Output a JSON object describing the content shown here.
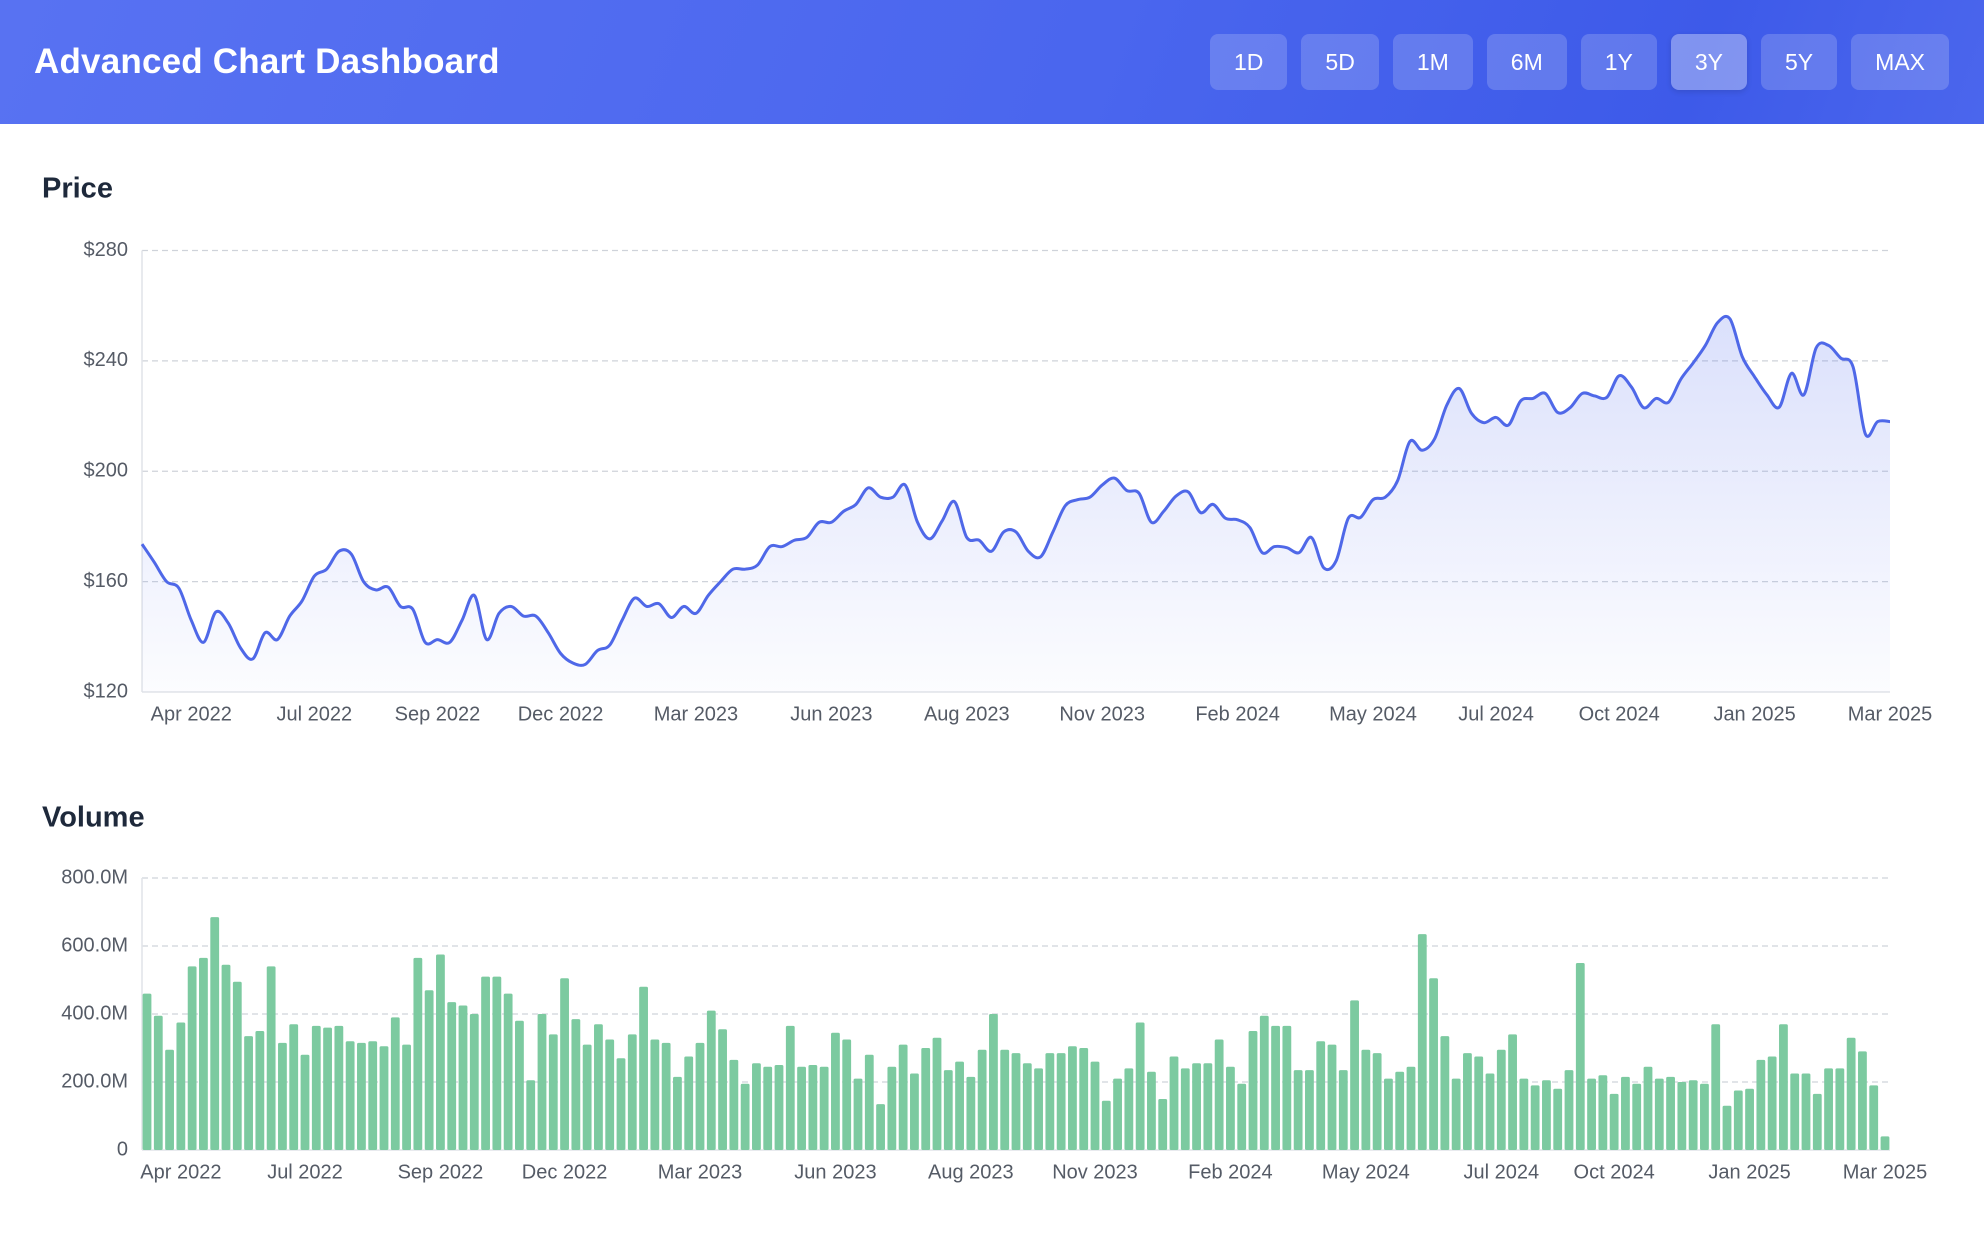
{
  "header": {
    "title": "Advanced Chart Dashboard",
    "buttons": [
      {
        "label": "1D"
      },
      {
        "label": "5D"
      },
      {
        "label": "1M"
      },
      {
        "label": "6M"
      },
      {
        "label": "1Y"
      },
      {
        "label": "3Y",
        "active": true
      },
      {
        "label": "5Y"
      },
      {
        "label": "MAX"
      }
    ]
  },
  "chart_data": [
    {
      "type": "line",
      "title": "Price",
      "color": "#4f68e8",
      "fill": true,
      "grid": true,
      "ylim": [
        120,
        280
      ],
      "yticks": [
        {
          "value": 120,
          "label": "$120"
        },
        {
          "value": 160,
          "label": "$160"
        },
        {
          "value": 200,
          "label": "$200"
        },
        {
          "value": 240,
          "label": "$240"
        },
        {
          "value": 280,
          "label": "$280"
        }
      ],
      "categories": [
        null,
        null,
        null,
        null,
        "Apr 2022",
        null,
        null,
        null,
        null,
        null,
        null,
        null,
        null,
        null,
        "Jul 2022",
        null,
        null,
        null,
        null,
        null,
        null,
        null,
        null,
        null,
        "Sep 2022",
        null,
        null,
        null,
        null,
        null,
        null,
        null,
        null,
        null,
        "Dec 2022",
        null,
        null,
        null,
        null,
        null,
        null,
        null,
        null,
        null,
        null,
        "Mar 2023",
        null,
        null,
        null,
        null,
        null,
        null,
        null,
        null,
        null,
        null,
        "Jun 2023",
        null,
        null,
        null,
        null,
        null,
        null,
        null,
        null,
        null,
        null,
        "Aug 2023",
        null,
        null,
        null,
        null,
        null,
        null,
        null,
        null,
        null,
        null,
        "Nov 2023",
        null,
        null,
        null,
        null,
        null,
        null,
        null,
        null,
        null,
        null,
        "Feb 2024",
        null,
        null,
        null,
        null,
        null,
        null,
        null,
        null,
        null,
        null,
        "May 2024",
        null,
        null,
        null,
        null,
        null,
        null,
        null,
        null,
        null,
        "Jul 2024",
        null,
        null,
        null,
        null,
        null,
        null,
        null,
        null,
        null,
        "Oct 2024",
        null,
        null,
        null,
        null,
        null,
        null,
        null,
        null,
        null,
        null,
        "Jan 2025",
        null,
        null,
        null,
        null,
        null,
        null,
        null,
        null,
        null,
        null,
        "Mar 2025"
      ],
      "values": [
        173.6,
        167,
        160,
        157.6,
        146,
        138,
        149,
        145,
        136,
        132,
        141.5,
        139,
        147.5,
        153,
        162,
        164.5,
        171,
        170,
        160,
        157,
        158,
        151,
        150,
        138,
        139,
        138,
        146,
        155,
        139,
        148.5,
        151,
        147.5,
        147.5,
        141.5,
        134,
        130.5,
        130,
        135,
        137,
        146,
        154,
        151,
        152,
        147,
        151,
        148.5,
        155,
        160,
        164.5,
        164.5,
        166,
        172.7,
        172.7,
        175,
        176,
        181.5,
        181.5,
        185.5,
        188,
        194,
        190.6,
        190.6,
        195,
        181.5,
        175.5,
        182,
        189,
        176,
        175,
        171,
        178,
        178,
        171,
        169,
        178,
        187.5,
        189.7,
        190.6,
        195,
        197.5,
        193,
        192,
        181.5,
        185.5,
        191,
        192.5,
        185,
        188,
        183,
        182.4,
        179.6,
        170.5,
        172.7,
        172.3,
        170.5,
        176,
        165,
        167.5,
        183,
        183.3,
        189.7,
        190.6,
        196.6,
        210.8,
        207.6,
        211.7,
        224,
        230,
        221,
        217.6,
        219.5,
        216.7,
        225.5,
        226.4,
        228.2,
        221.3,
        223,
        228.2,
        227.3,
        226.8,
        234.6,
        230.5,
        223,
        226.4,
        225,
        233.3,
        239.2,
        245.6,
        253.9,
        255.2,
        241.5,
        234.2,
        227.7,
        223.2,
        235.5,
        227.7,
        244.7,
        245.6,
        241,
        237.8,
        213.5,
        218,
        218
      ]
    },
    {
      "type": "bar",
      "title": "Volume",
      "color": "#7ccaa0",
      "grid": true,
      "ylim": [
        0,
        800
      ],
      "yticks": [
        0,
        {
          "value": 200,
          "label": "200.0M"
        },
        {
          "value": 400,
          "label": "400.0M"
        },
        {
          "value": 600,
          "label": "600.0M"
        },
        {
          "value": 800,
          "label": "800.0M"
        }
      ],
      "categories": [
        null,
        null,
        null,
        "Apr 2022",
        null,
        null,
        null,
        null,
        null,
        null,
        null,
        null,
        null,
        null,
        "Jul 2022",
        null,
        null,
        null,
        null,
        null,
        null,
        null,
        null,
        null,
        null,
        null,
        "Sep 2022",
        null,
        null,
        null,
        null,
        null,
        null,
        null,
        null,
        null,
        null,
        "Dec 2022",
        null,
        null,
        null,
        null,
        null,
        null,
        null,
        null,
        null,
        null,
        null,
        "Mar 2023",
        null,
        null,
        null,
        null,
        null,
        null,
        null,
        null,
        null,
        null,
        null,
        "Jun 2023",
        null,
        null,
        null,
        null,
        null,
        null,
        null,
        null,
        null,
        null,
        null,
        "Aug 2023",
        null,
        null,
        null,
        null,
        null,
        null,
        null,
        null,
        null,
        null,
        "Nov 2023",
        null,
        null,
        null,
        null,
        null,
        null,
        null,
        null,
        null,
        null,
        null,
        "Feb 2024",
        null,
        null,
        null,
        null,
        null,
        null,
        null,
        null,
        null,
        null,
        null,
        "May 2024",
        null,
        null,
        null,
        null,
        null,
        null,
        null,
        null,
        null,
        null,
        null,
        "Jul 2024",
        null,
        null,
        null,
        null,
        null,
        null,
        null,
        null,
        null,
        "Oct 2024",
        null,
        null,
        null,
        null,
        null,
        null,
        null,
        null,
        null,
        null,
        null,
        "Jan 2025",
        null,
        null,
        null,
        null,
        null,
        null,
        null,
        null,
        null,
        null,
        null,
        "Mar 2025"
      ],
      "values": [
        460,
        395,
        295,
        375,
        540,
        565,
        685,
        545,
        495,
        335,
        350,
        540,
        315,
        370,
        280,
        365,
        360,
        365,
        320,
        315,
        320,
        305,
        390,
        310,
        565,
        470,
        575,
        435,
        425,
        400,
        510,
        510,
        460,
        380,
        205,
        400,
        340,
        505,
        385,
        310,
        370,
        325,
        270,
        340,
        480,
        325,
        315,
        215,
        275,
        315,
        410,
        355,
        265,
        195,
        255,
        245,
        250,
        365,
        245,
        250,
        245,
        345,
        325,
        210,
        280,
        135,
        245,
        310,
        225,
        300,
        330,
        235,
        260,
        215,
        295,
        400,
        295,
        285,
        255,
        240,
        285,
        285,
        305,
        300,
        260,
        145,
        210,
        240,
        375,
        230,
        150,
        275,
        240,
        255,
        255,
        325,
        245,
        195,
        350,
        395,
        365,
        365,
        235,
        235,
        320,
        310,
        235,
        440,
        295,
        285,
        210,
        230,
        245,
        635,
        505,
        335,
        210,
        285,
        275,
        225,
        295,
        340,
        210,
        190,
        205,
        180,
        235,
        550,
        210,
        220,
        165,
        215,
        195,
        245,
        210,
        215,
        200,
        205,
        195,
        370,
        130,
        175,
        180,
        265,
        275,
        370,
        225,
        225,
        165,
        240,
        240,
        330,
        290,
        190,
        40
      ]
    }
  ]
}
